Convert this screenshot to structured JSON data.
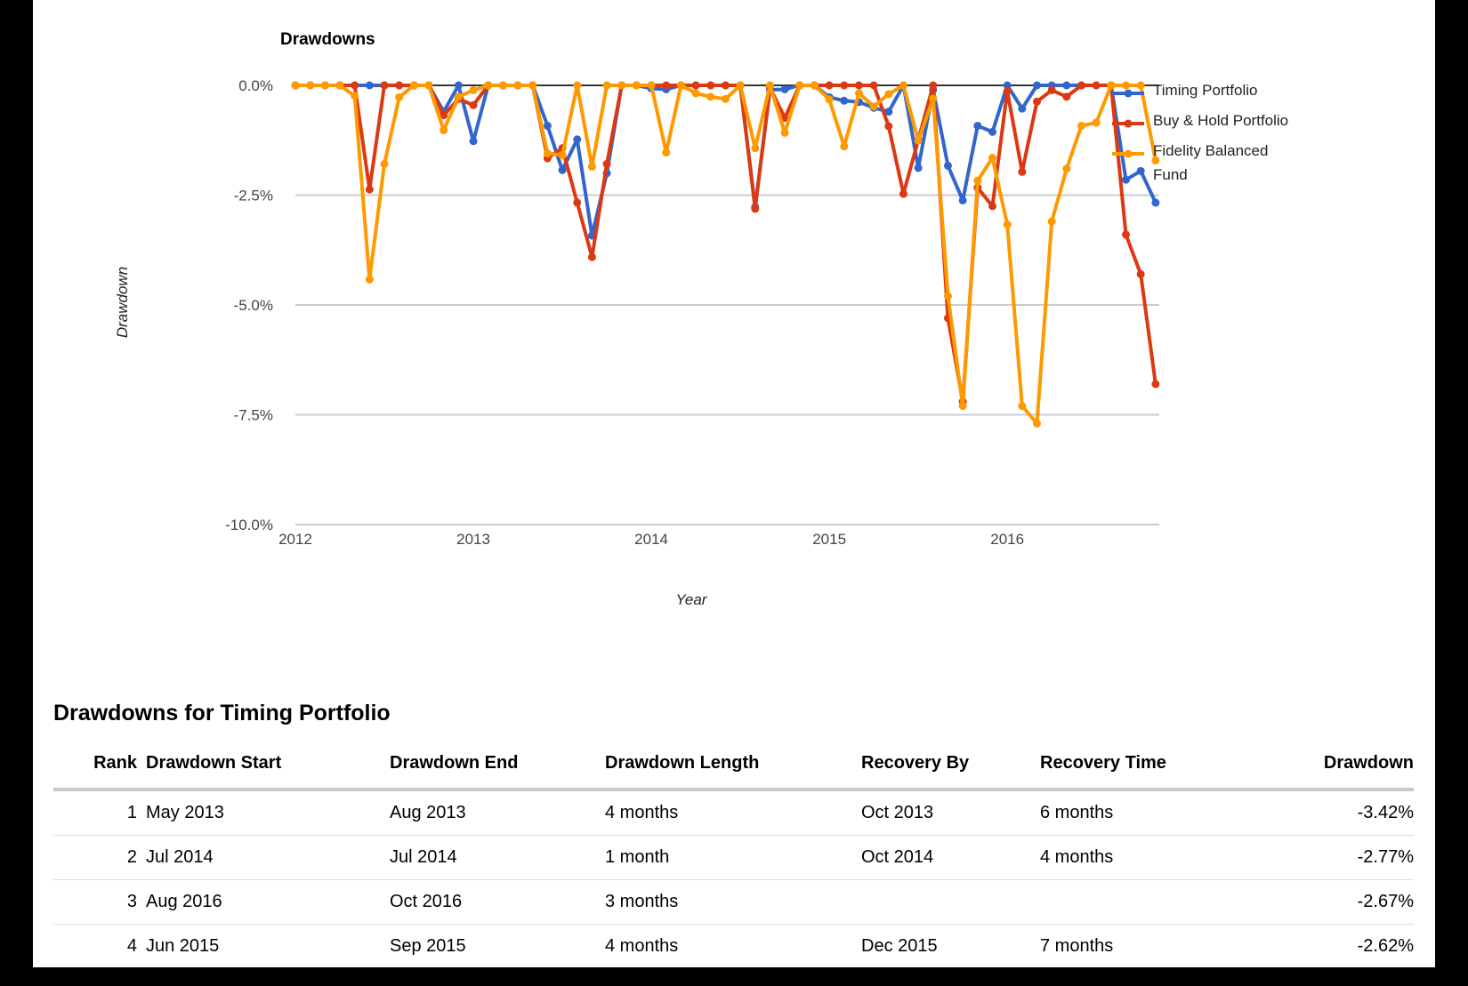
{
  "chart": {
    "title": "Drawdowns",
    "y_axis_title": "Drawdown",
    "x_axis_title": "Year"
  },
  "chart_data": {
    "type": "line",
    "title": "Drawdowns",
    "xlabel": "Year",
    "ylabel": "Drawdown",
    "ylim": [
      -10.0,
      0.0
    ],
    "grid": true,
    "legend_position": "right",
    "y_ticks": [
      {
        "label": "0.0%",
        "value": 0
      },
      {
        "label": "-2.5%",
        "value": -2.5
      },
      {
        "label": "-5.0%",
        "value": -5
      },
      {
        "label": "-7.5%",
        "value": -7.5
      },
      {
        "label": "-10.0%",
        "value": -10
      }
    ],
    "x_ticks": [
      {
        "label": "2012",
        "month_index": 0
      },
      {
        "label": "2013",
        "month_index": 12
      },
      {
        "label": "2014",
        "month_index": 24
      },
      {
        "label": "2015",
        "month_index": 36
      },
      {
        "label": "2016",
        "month_index": 48
      }
    ],
    "x_months": [
      "2011-12",
      "2012-01",
      "2012-02",
      "2012-03",
      "2012-04",
      "2012-05",
      "2012-06",
      "2012-07",
      "2012-08",
      "2012-09",
      "2012-10",
      "2012-11",
      "2012-12",
      "2013-01",
      "2013-02",
      "2013-03",
      "2013-04",
      "2013-05",
      "2013-06",
      "2013-07",
      "2013-08",
      "2013-09",
      "2013-10",
      "2013-11",
      "2013-12",
      "2014-01",
      "2014-02",
      "2014-03",
      "2014-04",
      "2014-05",
      "2014-06",
      "2014-07",
      "2014-08",
      "2014-09",
      "2014-10",
      "2014-11",
      "2014-12",
      "2015-01",
      "2015-02",
      "2015-03",
      "2015-04",
      "2015-05",
      "2015-06",
      "2015-07",
      "2015-08",
      "2015-09",
      "2015-10",
      "2015-11",
      "2015-12",
      "2016-01",
      "2016-02",
      "2016-03",
      "2016-04",
      "2016-05",
      "2016-06",
      "2016-07",
      "2016-08",
      "2016-09",
      "2016-10"
    ],
    "series": [
      {
        "name": "Timing Portfolio",
        "color": "#3366CC",
        "values": [
          0,
          0,
          0,
          0,
          0,
          0,
          0,
          0,
          0,
          0,
          -0.6,
          0,
          -1.27,
          0,
          0,
          0,
          0,
          -0.92,
          -1.93,
          -1.23,
          -3.42,
          -2.0,
          0,
          0,
          -0.07,
          -0.09,
          0,
          0,
          0,
          0,
          0,
          -2.77,
          -0.1,
          -0.09,
          0,
          0,
          -0.27,
          -0.35,
          -0.38,
          -0.51,
          -0.6,
          0,
          -1.88,
          -0.1,
          -1.83,
          -2.62,
          -0.92,
          -1.06,
          0,
          -0.53,
          0,
          0,
          0,
          0,
          0,
          0,
          -2.15,
          -1.95,
          -2.67
        ]
      },
      {
        "name": "Buy & Hold Portfolio",
        "color": "#DC3912",
        "values": [
          0,
          0,
          0,
          0,
          0,
          -2.37,
          0,
          0,
          0,
          0,
          -0.68,
          -0.31,
          -0.45,
          0,
          0,
          0,
          0,
          -1.66,
          -1.43,
          -2.67,
          -3.91,
          -1.79,
          0,
          0,
          0,
          0,
          0,
          0,
          0,
          0,
          0,
          -2.81,
          -0.05,
          -0.74,
          0,
          0,
          0,
          0,
          0,
          0,
          -0.93,
          -2.47,
          -1.24,
          0,
          -5.3,
          -7.2,
          -2.33,
          -2.75,
          -0.13,
          -1.97,
          -0.37,
          -0.11,
          -0.26,
          0,
          0,
          0,
          -3.4,
          -4.3,
          -6.8
        ]
      },
      {
        "name": "Fidelity Balanced Fund",
        "color": "#FF9900",
        "values": [
          0,
          0,
          0,
          0,
          -0.24,
          -4.42,
          -1.79,
          -0.27,
          0,
          0,
          -1.02,
          -0.26,
          -0.11,
          0,
          0,
          0,
          0,
          -1.55,
          -1.59,
          0,
          -1.85,
          0,
          0,
          0,
          0,
          -1.53,
          0,
          -0.18,
          -0.26,
          -0.31,
          0,
          -1.43,
          0,
          -1.08,
          0,
          0,
          -0.32,
          -1.39,
          -0.18,
          -0.48,
          -0.2,
          0,
          -1.26,
          -0.3,
          -4.8,
          -7.3,
          -2.17,
          -1.65,
          -3.17,
          -7.3,
          -7.7,
          -3.1,
          -1.9,
          -0.92,
          -0.85,
          0,
          0,
          0,
          -1.71
        ]
      }
    ]
  },
  "table": {
    "title": "Drawdowns for Timing Portfolio",
    "columns": [
      "Rank",
      "Drawdown Start",
      "Drawdown End",
      "Drawdown Length",
      "Recovery By",
      "Recovery Time",
      "Drawdown"
    ],
    "rows": [
      {
        "rank": "1",
        "start": "May 2013",
        "end": "Aug 2013",
        "length": "4 months",
        "recovery_by": "Oct 2013",
        "recovery_time": "6 months",
        "drawdown": "-3.42%"
      },
      {
        "rank": "2",
        "start": "Jul 2014",
        "end": "Jul 2014",
        "length": "1 month",
        "recovery_by": "Oct 2014",
        "recovery_time": "4 months",
        "drawdown": "-2.77%"
      },
      {
        "rank": "3",
        "start": "Aug 2016",
        "end": "Oct 2016",
        "length": "3 months",
        "recovery_by": "",
        "recovery_time": "",
        "drawdown": "-2.67%"
      },
      {
        "rank": "4",
        "start": "Jun 2015",
        "end": "Sep 2015",
        "length": "4 months",
        "recovery_by": "Dec 2015",
        "recovery_time": "7 months",
        "drawdown": "-2.62%"
      }
    ]
  }
}
